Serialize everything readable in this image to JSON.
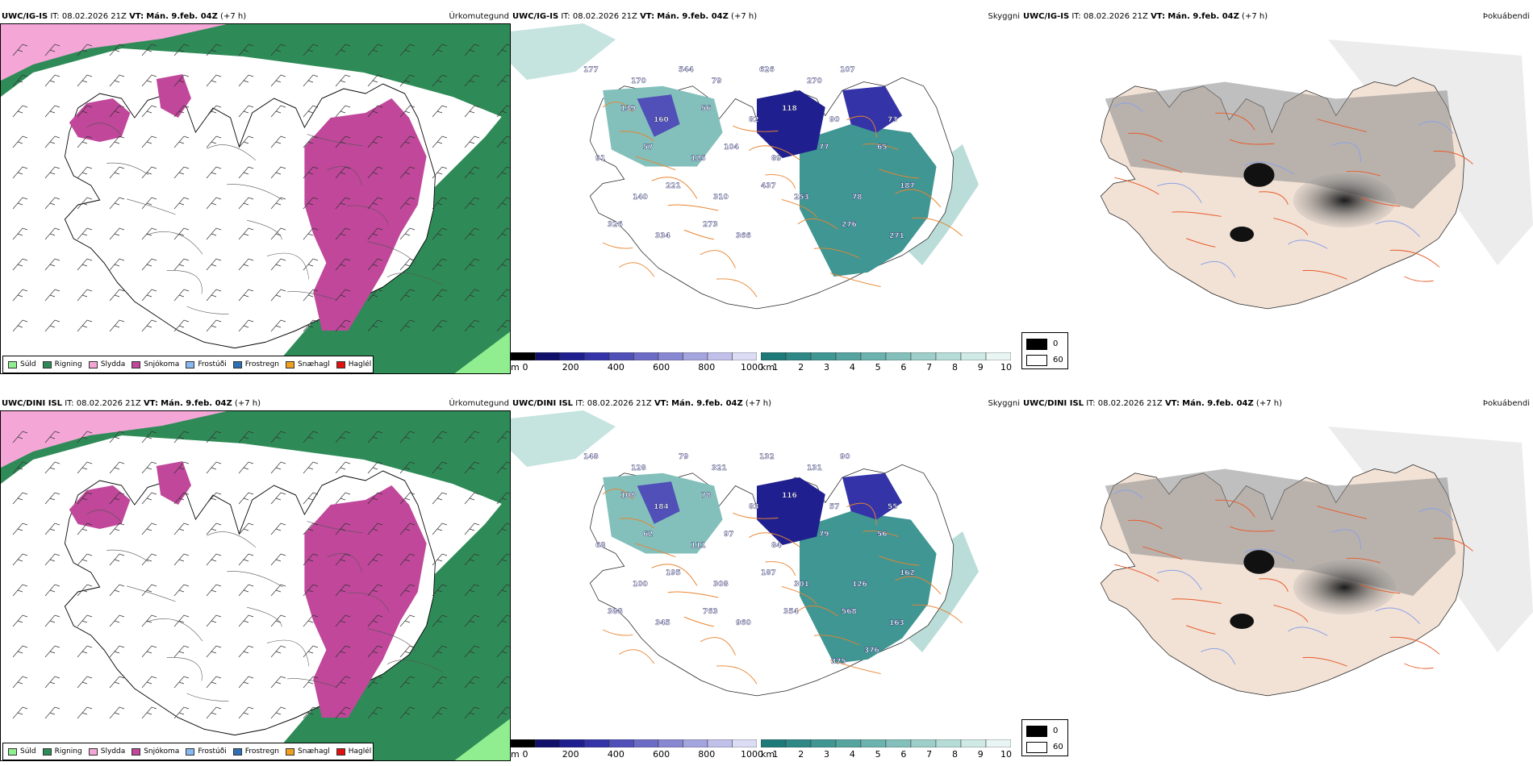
{
  "rows": [
    {
      "id": "row1",
      "panels": [
        {
          "model": "UWC/IG-IS",
          "it_label": "IT:",
          "it_value": "08.02.2026 21Z",
          "vt_label": "VT:",
          "vt_value": "Mán. 9.feb. 04Z",
          "lead": "(+7 h)",
          "title": "Úrkomutegund"
        },
        {
          "model": "UWC/IG-IS",
          "it_label": "IT:",
          "it_value": "08.02.2026 21Z",
          "vt_label": "VT:",
          "vt_value": "Mán. 9.feb. 04Z",
          "lead": "(+7 h)",
          "title": "Skyggni"
        },
        {
          "model": "UWC/IG-IS",
          "it_label": "IT:",
          "it_value": "08.02.2026 21Z",
          "vt_label": "VT:",
          "vt_value": "Mán. 9.feb. 04Z",
          "lead": "(+7 h)",
          "title": "Þokuábendi"
        }
      ]
    },
    {
      "id": "row2",
      "panels": [
        {
          "model": "UWC/DINI ISL",
          "it_label": "IT:",
          "it_value": "08.02.2026 21Z",
          "vt_label": "VT:",
          "vt_value": "Mán. 9.feb. 04Z",
          "lead": "(+7 h)",
          "title": "Úrkomutegund"
        },
        {
          "model": "UWC/DINI ISL",
          "it_label": "IT:",
          "it_value": "08.02.2026 21Z",
          "vt_label": "VT:",
          "vt_value": "Mán. 9.feb. 04Z",
          "lead": "(+7 h)",
          "title": "Skyggni"
        },
        {
          "model": "UWC/DINI ISL",
          "it_label": "IT:",
          "it_value": "08.02.2026 21Z",
          "vt_label": "VT:",
          "vt_value": "Mán. 9.feb. 04Z",
          "lead": "(+7 h)",
          "title": "Þokuábendi"
        }
      ]
    }
  ],
  "precip_legend": [
    {
      "label": "Súld",
      "color": "#90ee90"
    },
    {
      "label": "Rigning",
      "color": "#2e8b57"
    },
    {
      "label": "Slydda",
      "color": "#f4a6d7"
    },
    {
      "label": "Snjókoma",
      "color": "#c0479a"
    },
    {
      "label": "Frostúði",
      "color": "#87b9f0"
    },
    {
      "label": "Frostregn",
      "color": "#2f6fb5"
    },
    {
      "label": "Snæhagl",
      "color": "#f0a020"
    },
    {
      "label": "Haglél",
      "color": "#e01010"
    }
  ],
  "height_bar": {
    "unit": "m",
    "ticks": [
      "0",
      "200",
      "400",
      "600",
      "800",
      "1000"
    ],
    "colors": [
      "#000000",
      "#10106a",
      "#1f1f8f",
      "#3434a8",
      "#5050b8",
      "#6c6cc6",
      "#8888d2",
      "#a4a4de",
      "#c0c0ea",
      "#dcdcf5"
    ]
  },
  "vis_bar": {
    "unit": "km",
    "ticks": [
      "1",
      "2",
      "3",
      "4",
      "5",
      "6",
      "7",
      "8",
      "9",
      "10"
    ],
    "colors": [
      "#1e7a78",
      "#2e8886",
      "#3f9693",
      "#55a4a0",
      "#6cb2ae",
      "#84c0bb",
      "#9dcec9",
      "#b6dcd7",
      "#cfe9e5",
      "#e8f5f3"
    ]
  },
  "fog_legend": [
    {
      "label": "0",
      "color": "#000000"
    },
    {
      "label": "60",
      "color": "#ffffff"
    }
  ],
  "vis_numbers_row1": [
    "177",
    "170",
    "544",
    "79",
    "626",
    "270",
    "107",
    "73",
    "139",
    "160",
    "56",
    "82",
    "118",
    "90",
    "65",
    "91",
    "57",
    "125",
    "104",
    "89",
    "77",
    "78",
    "187",
    "140",
    "221",
    "310",
    "437",
    "253",
    "276",
    "271",
    "326",
    "334",
    "273",
    "366"
  ],
  "vis_numbers_row2": [
    "148",
    "128",
    "79",
    "321",
    "132",
    "131",
    "90",
    "55",
    "108",
    "184",
    "78",
    "83",
    "116",
    "57",
    "56",
    "68",
    "62",
    "111",
    "97",
    "84",
    "79",
    "126",
    "162",
    "100",
    "195",
    "308",
    "187",
    "301",
    "568",
    "163",
    "388",
    "345",
    "763",
    "960",
    "354",
    "375",
    "376"
  ]
}
